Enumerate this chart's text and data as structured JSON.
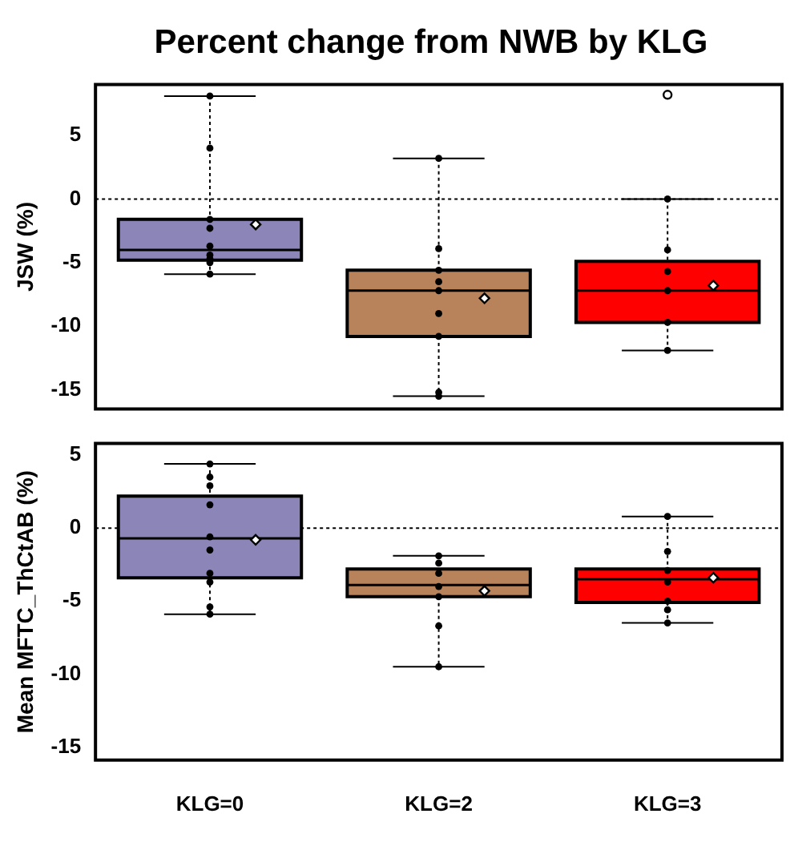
{
  "chart_data": [
    {
      "type": "box",
      "title": "Percent change from NWB by KLG",
      "ylabel": "JSW (%)",
      "categories": [
        "KLG=0",
        "KLG=2",
        "KLG=3"
      ],
      "colors": [
        "#8b85b8",
        "#b8835a",
        "#ff0000"
      ],
      "boxes": [
        {
          "low": -5.9,
          "q1": -4.8,
          "median": -4.0,
          "q3": -1.6,
          "high": 8.1,
          "mean": -2.0
        },
        {
          "low": -15.5,
          "q1": -10.8,
          "median": -7.2,
          "q3": -5.6,
          "high": 3.2,
          "mean": -7.8
        },
        {
          "low": -11.9,
          "q1": -9.7,
          "median": -7.2,
          "q3": -4.9,
          "high": 0,
          "mean": -6.8,
          "outliers": [
            8.2
          ]
        }
      ],
      "series": [
        {
          "type": "scatter",
          "color": "#000000",
          "x": [
            "KLG=0",
            "KLG=0",
            "KLG=0",
            "KLG=0",
            "KLG=0",
            "KLG=0",
            "KLG=0",
            "KLG=0",
            "KLG=0",
            "KLG=2",
            "KLG=2",
            "KLG=2",
            "KLG=2",
            "KLG=2",
            "KLG=2",
            "KLG=2",
            "KLG=2",
            "KLG=2",
            "KLG=3",
            "KLG=3",
            "KLG=3",
            "KLG=3",
            "KLG=3",
            "KLG=3"
          ],
          "values": [
            8.1,
            4.0,
            -1.6,
            -2.3,
            -3.7,
            -4.4,
            -4.7,
            -5.0,
            -5.9,
            3.2,
            -3.9,
            -5.6,
            -6.5,
            -7.2,
            -9.0,
            -10.8,
            -15.2,
            -15.5,
            0,
            -4.0,
            -5.7,
            -7.2,
            -9.7,
            -11.9
          ]
        }
      ],
      "ylim": [
        -16.5,
        9
      ],
      "yticks": [
        -15,
        -10,
        -5,
        0,
        5
      ],
      "grid": false,
      "legend": false,
      "tick_labels": "y",
      "marker": "circle",
      "ref_lines": [
        {
          "axis": "y",
          "value": 0,
          "line_style": "dotted"
        }
      ]
    },
    {
      "type": "box",
      "ylabel": "Mean MFTC_ThCtAB (%)",
      "categories": [
        "KLG=0",
        "KLG=2",
        "KLG=3"
      ],
      "colors": [
        "#8b85b8",
        "#b8835a",
        "#ff0000"
      ],
      "boxes": [
        {
          "low": -5.9,
          "q1": -3.4,
          "median": -0.7,
          "q3": 2.2,
          "high": 4.4,
          "mean": -0.8
        },
        {
          "low": -9.5,
          "q1": -4.7,
          "median": -3.9,
          "q3": -2.8,
          "high": -1.9,
          "mean": -4.3
        },
        {
          "low": -6.5,
          "q1": -5.1,
          "median": -3.5,
          "q3": -2.8,
          "high": 0.8,
          "mean": -3.4
        }
      ],
      "series": [
        {
          "type": "scatter",
          "color": "#000000",
          "x": [
            "KLG=0",
            "KLG=0",
            "KLG=0",
            "KLG=0",
            "KLG=0",
            "KLG=0",
            "KLG=0",
            "KLG=0",
            "KLG=0",
            "KLG=0",
            "KLG=2",
            "KLG=2",
            "KLG=2",
            "KLG=2",
            "KLG=2",
            "KLG=2",
            "KLG=2",
            "KLG=3",
            "KLG=3",
            "KLG=3",
            "KLG=3",
            "KLG=3",
            "KLG=3",
            "KLG=3"
          ],
          "values": [
            4.4,
            3.5,
            2.9,
            1.6,
            -0.6,
            -1.5,
            -3.1,
            -3.7,
            -5.4,
            -5.9,
            -1.9,
            -2.4,
            -3.1,
            -4.0,
            -4.7,
            -6.7,
            -9.5,
            0.8,
            -1.6,
            -2.9,
            -3.7,
            -5.0,
            -5.6,
            -6.5
          ]
        }
      ],
      "ylim": [
        -15.9,
        5.8
      ],
      "yticks": [
        -15,
        -10,
        -5,
        0,
        5
      ],
      "grid": false,
      "legend": false,
      "marker": "circle",
      "ref_lines": [
        {
          "axis": "y",
          "value": 0,
          "line_style": "dotted"
        }
      ]
    }
  ]
}
